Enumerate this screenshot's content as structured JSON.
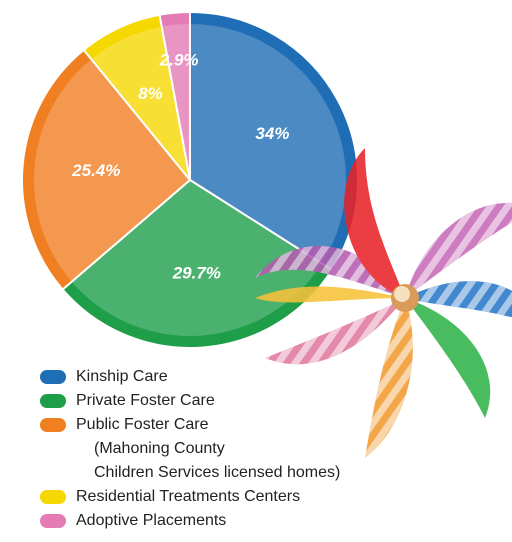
{
  "chart_data": {
    "type": "pie",
    "categories": [
      "Kinship Care",
      "Private Foster Care",
      "Public Foster Care",
      "Residential Treatments Centers",
      "Adoptive Placements"
    ],
    "values": [
      34,
      29.7,
      25.4,
      8,
      2.9
    ],
    "value_labels": [
      "34%",
      "29.7%",
      "25.4%",
      "8%",
      "2.9%"
    ],
    "colors": [
      "#1f6db5",
      "#1f9e4a",
      "#f07f22",
      "#f5d800",
      "#e47bb4"
    ],
    "legend_notes": [
      "(Mahoning County",
      "Children Services licensed homes)"
    ]
  }
}
